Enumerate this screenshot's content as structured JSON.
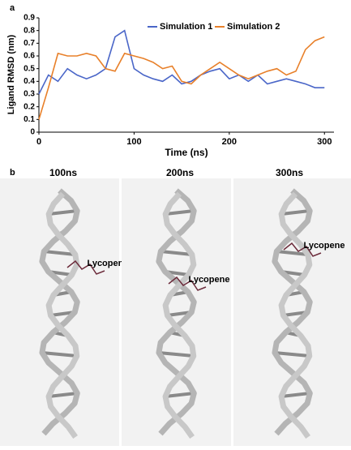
{
  "panel_labels": [
    "a",
    "b"
  ],
  "chart_data": {
    "type": "line",
    "y_label": "Ligand RMSD (nm)",
    "x_label": "Time (ns)",
    "x": [
      0,
      10,
      20,
      30,
      40,
      50,
      60,
      70,
      80,
      90,
      100,
      110,
      120,
      130,
      140,
      150,
      160,
      170,
      180,
      190,
      200,
      210,
      220,
      230,
      240,
      250,
      260,
      270,
      280,
      290,
      300
    ],
    "series": [
      {
        "name": "Simulation 1",
        "color": "#4a66c8",
        "values": [
          0.3,
          0.45,
          0.4,
          0.5,
          0.45,
          0.42,
          0.45,
          0.5,
          0.75,
          0.8,
          0.5,
          0.45,
          0.42,
          0.4,
          0.45,
          0.38,
          0.4,
          0.45,
          0.48,
          0.5,
          0.42,
          0.45,
          0.4,
          0.45,
          0.38,
          0.4,
          0.42,
          0.4,
          0.38,
          0.35,
          0.35
        ]
      },
      {
        "name": "Simulation 2",
        "color": "#e8802a",
        "values": [
          0.1,
          0.35,
          0.62,
          0.6,
          0.6,
          0.62,
          0.6,
          0.5,
          0.48,
          0.62,
          0.6,
          0.58,
          0.55,
          0.5,
          0.52,
          0.4,
          0.38,
          0.45,
          0.5,
          0.55,
          0.5,
          0.45,
          0.42,
          0.45,
          0.48,
          0.5,
          0.45,
          0.48,
          0.65,
          0.72,
          0.75
        ]
      }
    ],
    "xlim": [
      0,
      310
    ],
    "xticks": [
      0,
      100,
      200,
      300
    ],
    "ylim": [
      0,
      0.9
    ],
    "yticks": [
      0,
      0.1,
      0.2,
      0.3,
      0.4,
      0.5,
      0.6,
      0.7,
      0.8,
      0.9
    ]
  },
  "structures": [
    {
      "title": "100ns",
      "ligand": "Lycopene"
    },
    {
      "title": "200ns",
      "ligand": "Lycopene"
    },
    {
      "title": "300ns",
      "ligand": "Lycopene"
    }
  ]
}
